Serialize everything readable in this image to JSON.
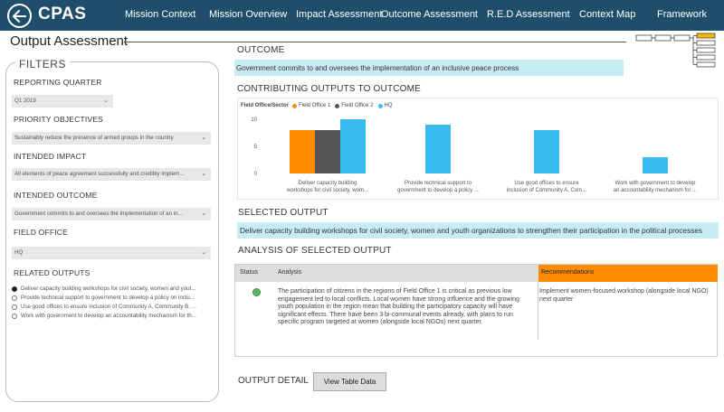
{
  "header": {
    "app_title": "CPAS",
    "nav": [
      {
        "label": "Mission Context"
      },
      {
        "label": "Mission Overview"
      },
      {
        "label": "Impact Assessment"
      },
      {
        "label": "Outcome Assessment"
      },
      {
        "label": "R.E.D Assessment"
      },
      {
        "label": "Context Map"
      },
      {
        "label": "Framework"
      }
    ]
  },
  "page_title": "Output Assessment",
  "filters": {
    "title": "FILTERS",
    "reporting_quarter": {
      "label": "REPORTING QUARTER",
      "value": "Q1 2019"
    },
    "priority_objectives": {
      "label": "PRIORITY OBJECTIVES",
      "value": "Sustainably reduce the presence of armed groups in the country"
    },
    "intended_impact": {
      "label": "INTENDED IMPACT",
      "value": "All elements of peace agreement successfully and credibly implem..."
    },
    "intended_outcome": {
      "label": "INTENDED OUTCOME",
      "value": "Government commits to and oversees the implementation of an in..."
    },
    "field_office": {
      "label": "FIELD OFFICE",
      "value": "HQ"
    },
    "related_outputs": {
      "label": "RELATED OUTPUTS",
      "items": [
        "Deliver capacity building workshops for civil society, women and yout...",
        "Provide technical support to government to develop a policy on inclu...",
        "Use good offices to ensure inclusion of Community A, Community B, ...",
        "Work with government to develop an accountability mechanism for th..."
      ]
    }
  },
  "outcome": {
    "heading": "OUTCOME",
    "text": "Government commits to and oversees the implementation of an inclusive peace process"
  },
  "contributing": {
    "heading": "CONTRIBUTING OUTPUTS TO OUTCOME",
    "legend_title": "Field Office/Sector"
  },
  "chart_data": {
    "type": "bar",
    "categories": [
      [
        "Deliver capacity building",
        "workshops for civil society, wom..."
      ],
      [
        "Provide technical support to",
        "government to develop a policy ..."
      ],
      [
        "Use good offices to ensure",
        "inclusion of Community A, Com..."
      ],
      [
        "Work with government to develop",
        "an accountability mechanism for ..."
      ]
    ],
    "series": [
      {
        "name": "Field Office 1",
        "color": "#ff8c00",
        "values": [
          8,
          null,
          null,
          null
        ]
      },
      {
        "name": "Field Office 2",
        "color": "#555555",
        "values": [
          8,
          null,
          null,
          null
        ]
      },
      {
        "name": "HQ",
        "color": "#3bbcf0",
        "values": [
          10,
          9,
          8,
          3
        ]
      }
    ],
    "yticks": [
      0,
      5,
      10
    ],
    "ylim": [
      0,
      10
    ],
    "legend": "top-left"
  },
  "selected_output": {
    "heading": "SELECTED OUTPUT",
    "text": "Deliver capacity building workshops for civil society, women and youth organizations to strengthen their participation in the political processes"
  },
  "analysis": {
    "heading": "ANALYSIS OF SELECTED OUTPUT",
    "col_status": "Status",
    "col_analysis": "Analysis",
    "col_recommendations": "Recommendations",
    "status_color": "#5cb85c",
    "analysis_text": "The participation of citizens in the regions of Field Office 1 is critical as previous low engagement led to local conflicts. Local women have strong influence and the growing youth population in the region mean that building the participatory capacity will have significant effects. There have been 3 bi-communal events already, with plans to run specific program targeted at women (alongside local NGOs) next quarter.",
    "recommendation_text": "Implement women-focused workshop (alongside local NGO) next quarter"
  },
  "output_detail": {
    "label": "OUTPUT DETAIL",
    "button_label": "View Table Data"
  }
}
